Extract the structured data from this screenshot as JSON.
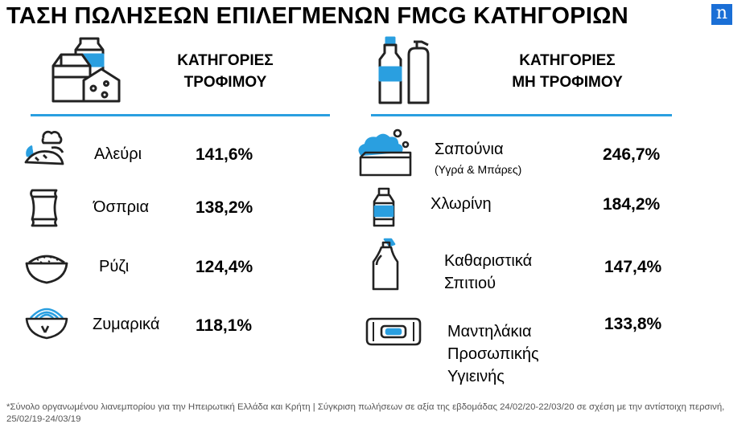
{
  "title": "ΤΑΣΗ ΠΩΛΗΣΕΩΝ ΕΠΙΛΕΓΜΕΝΩΝ FMCG ΚΑΤΗΓΟΡΙΩΝ",
  "logo": "n",
  "food": {
    "heading_line1": "ΚΑΤΗΓΟΡΙΕΣ",
    "heading_line2": "ΤΡΟΦΙΜΟΥ",
    "items": [
      {
        "label": "Αλεύρι",
        "value": "141,6%",
        "icon": "bread-icon"
      },
      {
        "label": "Όσπρια",
        "value": "138,2%",
        "icon": "sack-icon"
      },
      {
        "label": "Ρύζι",
        "value": "124,4%",
        "icon": "rice-bowl-icon"
      },
      {
        "label": "Ζυμαρικά",
        "value": "118,1%",
        "icon": "pasta-bowl-icon"
      }
    ]
  },
  "nonfood": {
    "heading_line1": "ΚΑΤΗΓΟΡΙΕΣ",
    "heading_line2": "ΜΗ ΤΡΟΦΙΜΟΥ",
    "items": [
      {
        "label": "Σαπούνια",
        "sublabel": "(Υγρά & Μπάρες)",
        "value": "246,7%",
        "icon": "soap-icon"
      },
      {
        "label": "Χλωρίνη",
        "value": "184,2%",
        "icon": "bleach-bottle-icon"
      },
      {
        "label_line1": "Καθαριστικά",
        "label_line2": "Σπιτιού",
        "value": "147,4%",
        "icon": "cleaner-bottle-icon"
      },
      {
        "label_line1": "Μαντηλάκια",
        "label_line2": "Προσωπικής",
        "label_line3": "Υγιεινής",
        "value": "133,8%",
        "icon": "wipes-pack-icon"
      }
    ]
  },
  "footnote": "*Σύνολο οργανωμένου λιανεμπορίου για την Ηπειρωτική Ελλάδα και Κρήτη | Σύγκριση πωλήσεων σε αξία της εβδομάδας 24/02/20-22/03/20 σε σχέση με την αντίστοιχη περσινή, 25/02/19-24/03/19",
  "colors": {
    "accent": "#2a9fe0",
    "brand": "#1a6fd6",
    "icon_stroke": "#222222"
  }
}
